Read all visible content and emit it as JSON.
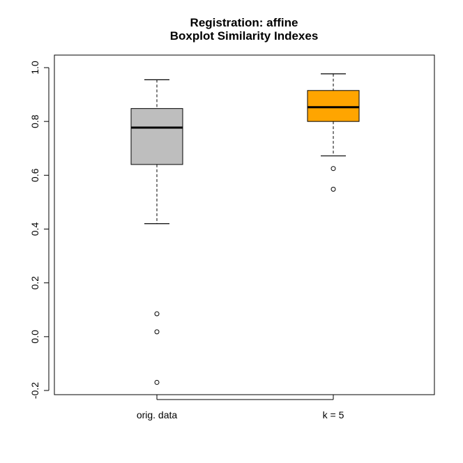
{
  "chart_data": {
    "type": "boxplot",
    "title": "Registration: affine",
    "subtitle": "Boxplot Similarity Indexes",
    "xlabel": "",
    "ylabel": "",
    "ylim": [
      -0.2,
      1.0
    ],
    "yticks": [
      -0.2,
      0.0,
      0.2,
      0.4,
      0.6,
      0.8,
      1.0
    ],
    "ytick_labels": [
      "-0.2",
      "0.0",
      "0.2",
      "0.4",
      "0.6",
      "0.8",
      "1.0"
    ],
    "grid": false,
    "legend": "none",
    "categories": [
      "orig. data",
      "k = 5"
    ],
    "boxes": [
      {
        "label": "orig. data",
        "fill": "#bebebe",
        "whisker_low": 0.42,
        "q1": 0.64,
        "median": 0.777,
        "q3": 0.848,
        "whisker_high": 0.955,
        "outliers": [
          0.085,
          0.018,
          -0.17
        ]
      },
      {
        "label": "k = 5",
        "fill": "#ffa500",
        "whisker_low": 0.672,
        "q1": 0.8,
        "median": 0.853,
        "q3": 0.915,
        "whisker_high": 0.977,
        "outliers": [
          0.625,
          0.548
        ]
      }
    ]
  }
}
